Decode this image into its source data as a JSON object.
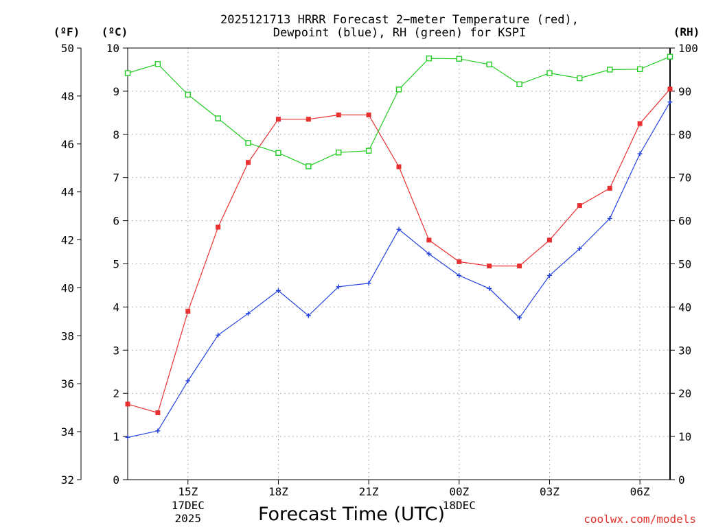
{
  "chart_data": {
    "type": "line",
    "title_line1": "2025121713 HRRR Forecast 2−meter Temperature (red),",
    "title_line2": "Dewpoint (blue), RH (green) for KSPI",
    "xlabel": "Forecast Time (UTC)",
    "credit": "coolwx.com/models",
    "x_hours": [
      13,
      14,
      15,
      16,
      17,
      18,
      19,
      20,
      21,
      22,
      23,
      24,
      25,
      26,
      27,
      28,
      29,
      30,
      31
    ],
    "x_range": [
      13,
      31
    ],
    "x_ticks": [
      {
        "hour": 15,
        "label": "15Z",
        "sub1": "17DEC",
        "sub2": "2025"
      },
      {
        "hour": 18,
        "label": "18Z"
      },
      {
        "hour": 21,
        "label": "21Z"
      },
      {
        "hour": 24,
        "label": "00Z",
        "sub1": "18DEC"
      },
      {
        "hour": 27,
        "label": "03Z"
      },
      {
        "hour": 30,
        "label": "06Z"
      }
    ],
    "left_axis_f": {
      "unit": "(ºF)",
      "range": [
        32,
        50
      ],
      "ticks": [
        "32",
        "34",
        "36",
        "38",
        "40",
        "42",
        "44",
        "46",
        "48",
        "50"
      ]
    },
    "left_axis_c": {
      "unit": "(ºC)",
      "range": [
        0,
        10
      ],
      "ticks": [
        "0",
        "1",
        "2",
        "3",
        "4",
        "5",
        "6",
        "7",
        "8",
        "9",
        "10"
      ]
    },
    "right_axis_rh": {
      "unit": "(RH)",
      "range": [
        0,
        100
      ],
      "ticks": [
        "0",
        "10",
        "20",
        "30",
        "40",
        "50",
        "60",
        "70",
        "80",
        "90",
        "100"
      ]
    },
    "series": [
      {
        "name": "2-meter Temperature",
        "axis": "C",
        "color": "#e83030",
        "marker": "filled-square",
        "values": [
          1.75,
          1.55,
          3.9,
          5.85,
          7.35,
          8.35,
          8.35,
          8.45,
          8.45,
          7.25,
          5.55,
          5.05,
          4.95,
          4.95,
          5.55,
          6.35,
          6.75,
          8.25,
          9.05
        ]
      },
      {
        "name": "Dewpoint",
        "axis": "C",
        "color": "#2040e0",
        "marker": "plus",
        "values": [
          0.98,
          1.13,
          2.29,
          3.35,
          3.85,
          4.38,
          3.8,
          4.47,
          4.55,
          5.8,
          5.23,
          4.73,
          4.43,
          3.75,
          4.73,
          5.35,
          6.05,
          7.55,
          8.75
        ]
      },
      {
        "name": "RH",
        "axis": "RH",
        "color": "#22cc22",
        "marker": "open-square",
        "values": [
          94.2,
          96.3,
          89.2,
          83.7,
          78.0,
          75.7,
          72.6,
          75.8,
          76.2,
          90.4,
          97.6,
          97.5,
          96.2,
          91.6,
          94.2,
          93.0,
          95.0,
          95.1,
          98.0
        ]
      }
    ]
  }
}
